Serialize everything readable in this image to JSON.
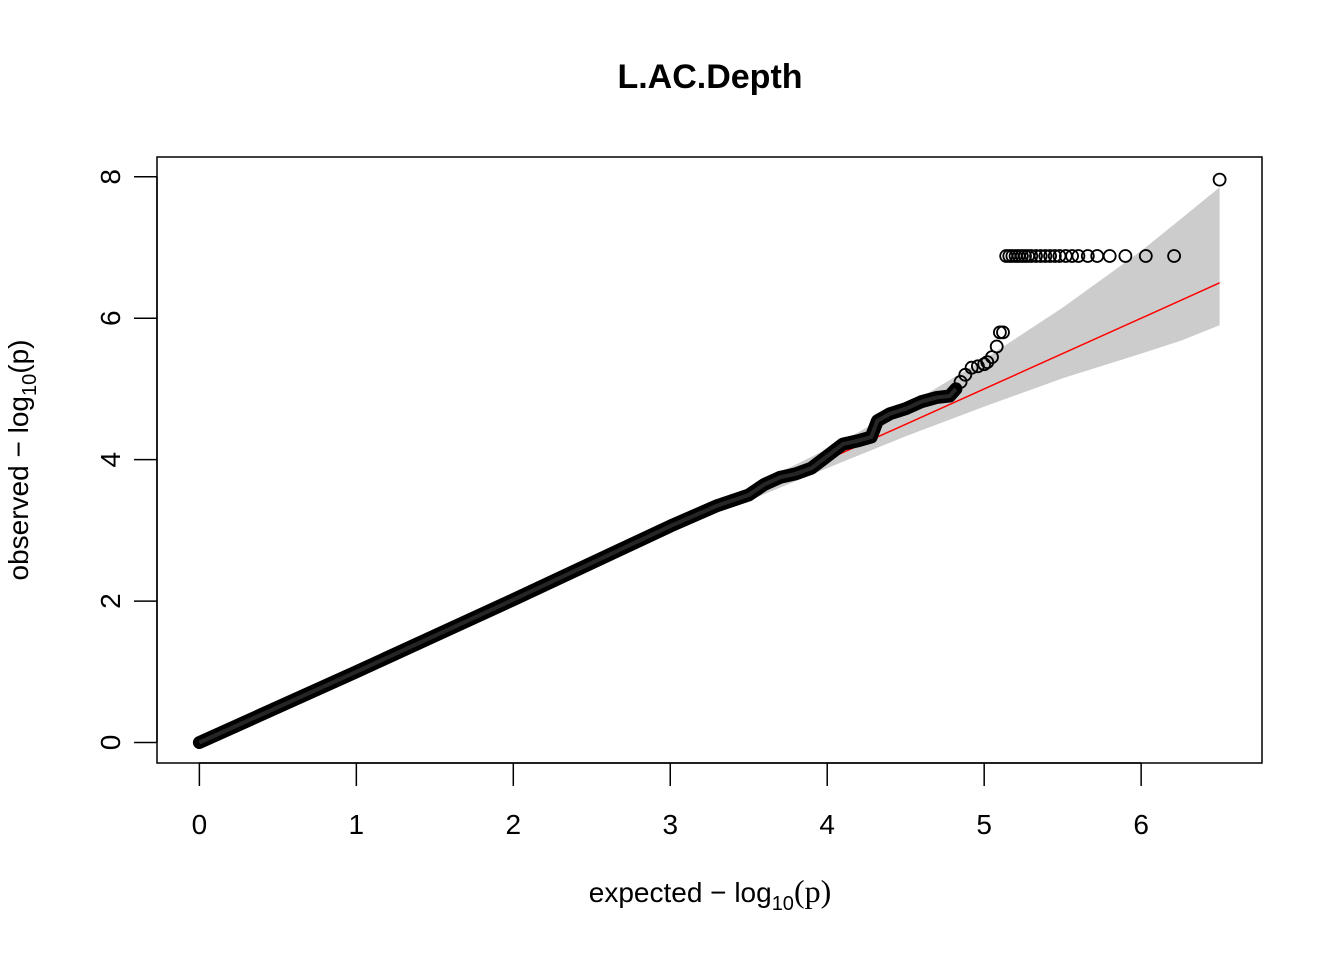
{
  "chart_data": {
    "type": "scatter",
    "title": "L.AC.Depth",
    "xlabel": {
      "prefix": "expected",
      "minus": "−",
      "log": "log",
      "sub": "10",
      "arg": "(p)"
    },
    "ylabel": {
      "prefix": "observed",
      "minus": "−",
      "log": "log",
      "sub": "10",
      "arg": "(p)"
    },
    "xlim": [
      -0.27,
      6.77
    ],
    "ylim": [
      -0.29,
      8.28
    ],
    "x_ticks": [
      "0",
      "1",
      "2",
      "3",
      "4",
      "5",
      "6"
    ],
    "y_ticks": [
      "0",
      "2",
      "4",
      "6",
      "8"
    ],
    "grid": false,
    "colors": {
      "points": "#000000",
      "reference_line": "#ff0000",
      "confidence_band": "#cccccc"
    },
    "reference_line": {
      "x": [
        0,
        6.5
      ],
      "y": [
        0,
        6.5
      ]
    },
    "confidence_band": {
      "x": [
        3.5,
        4.0,
        4.5,
        5.0,
        5.5,
        6.0,
        6.25,
        6.5
      ],
      "upper": [
        3.6,
        4.15,
        4.75,
        5.42,
        6.15,
        6.95,
        7.4,
        7.85
      ],
      "lower": [
        3.42,
        3.88,
        4.33,
        4.75,
        5.15,
        5.5,
        5.68,
        5.9
      ]
    },
    "main_trend": {
      "x": [
        0,
        1,
        2,
        3,
        3.3,
        3.5,
        3.6,
        3.7,
        3.8,
        3.9,
        4.0,
        4.1,
        4.2,
        4.28,
        4.32,
        4.4,
        4.5,
        4.6,
        4.7,
        4.78,
        4.82
      ],
      "y": [
        0,
        1,
        2.02,
        3.06,
        3.35,
        3.5,
        3.65,
        3.75,
        3.8,
        3.88,
        4.05,
        4.22,
        4.27,
        4.32,
        4.55,
        4.65,
        4.72,
        4.82,
        4.88,
        4.9,
        5.0
      ]
    },
    "tail_points": {
      "x": [
        4.85,
        4.88,
        4.92,
        4.96,
        5.0,
        5.02,
        5.05,
        5.08,
        5.1,
        5.12,
        5.14,
        5.16,
        5.18,
        5.2,
        5.22,
        5.24,
        5.26,
        5.28,
        5.3,
        5.33,
        5.36,
        5.39,
        5.42,
        5.45,
        5.48,
        5.52,
        5.56,
        5.6,
        5.66,
        5.72,
        5.8,
        5.9,
        6.03,
        6.21,
        6.5
      ],
      "y": [
        5.1,
        5.2,
        5.3,
        5.32,
        5.35,
        5.38,
        5.45,
        5.6,
        5.8,
        5.8,
        6.88,
        6.88,
        6.88,
        6.88,
        6.88,
        6.88,
        6.88,
        6.88,
        6.88,
        6.88,
        6.88,
        6.88,
        6.88,
        6.88,
        6.88,
        6.88,
        6.88,
        6.88,
        6.88,
        6.88,
        6.88,
        6.88,
        6.88,
        6.88,
        7.96
      ]
    }
  }
}
